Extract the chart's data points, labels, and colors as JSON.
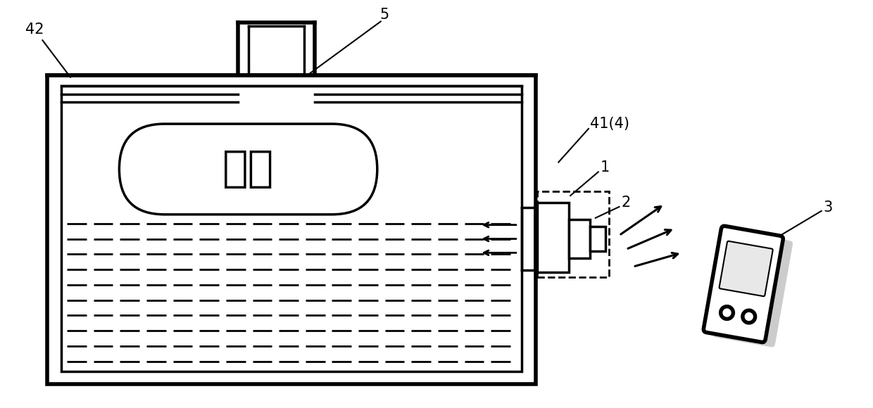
{
  "bg_color": "#ffffff",
  "line_color": "#000000",
  "fig_width": 12.4,
  "fig_height": 5.8,
  "chinese_text": "胶囊",
  "lw_thick": 4.0,
  "lw_med": 2.5,
  "lw_thin": 1.5,
  "lw_dash": 2.0,
  "label_fontsize": 15,
  "chinese_fontsize": 44
}
